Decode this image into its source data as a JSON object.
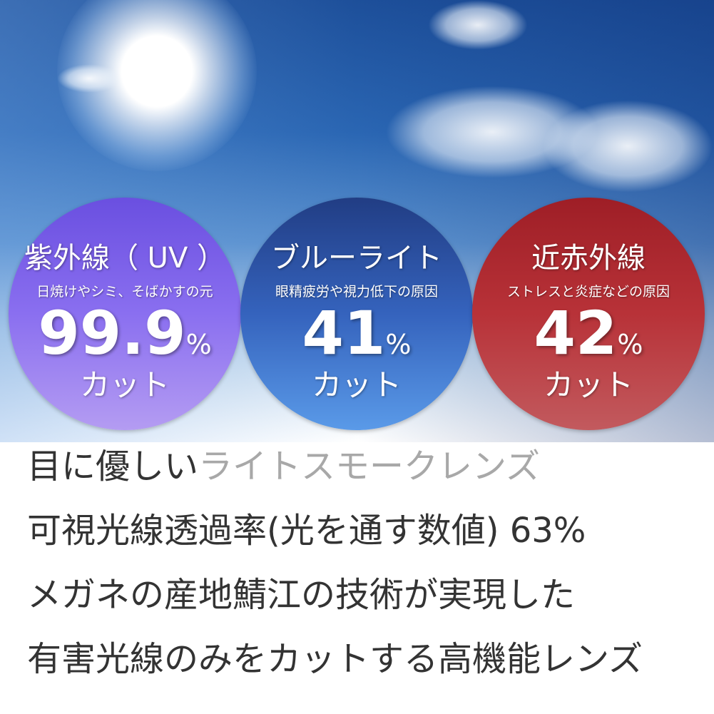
{
  "circles": [
    {
      "title": "紫外線（ UV ）",
      "subtitle": "日焼けやシミ、そばかすの元",
      "value": "99.9",
      "unit": "%",
      "cut": "カット",
      "color": "#7d62ea"
    },
    {
      "title": "ブルーライト",
      "subtitle": "眼精疲労や視力低下の原因",
      "value": "41",
      "unit": "%",
      "cut": "カット",
      "color": "#3563bd"
    },
    {
      "title": "近赤外線",
      "subtitle": "ストレスと炎症などの原因",
      "value": "42",
      "unit": "%",
      "cut": "カット",
      "color": "#b3262e"
    }
  ],
  "lines": {
    "l1a": "目に優しい",
    "l1b": "ライトスモークレンズ",
    "l2": "可視光線透過率(光を通す数値) 63%",
    "l3": "メガネの産地鯖江の技術が実現した",
    "l4": "有害光線のみをカットする高機能レンズ"
  }
}
